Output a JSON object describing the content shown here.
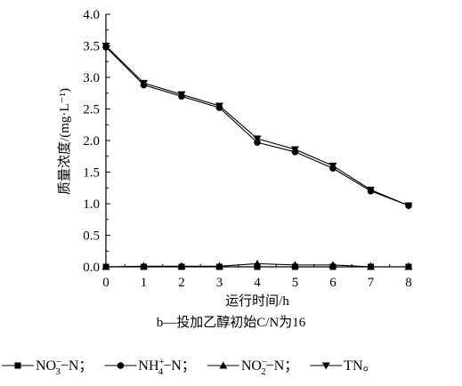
{
  "chart_data": {
    "type": "line",
    "title": "",
    "caption": "b—投加乙醇初始C/N为16",
    "xlabel": "运行时间/h",
    "ylabel": "质量浓度/(mg·L⁻¹)",
    "xlim": [
      0,
      8
    ],
    "ylim": [
      0,
      4.0
    ],
    "x_ticks": [
      "0",
      "1",
      "2",
      "3",
      "4",
      "5",
      "6",
      "7",
      "8"
    ],
    "y_ticks": [
      "0.0",
      "0.5",
      "1.0",
      "1.5",
      "2.0",
      "2.5",
      "3.0",
      "3.5",
      "4.0"
    ],
    "grid": false,
    "legend_position": "bottom",
    "x": [
      0,
      1,
      2,
      3,
      4,
      5,
      6,
      7,
      8
    ],
    "series": [
      {
        "name": "NO3−-N",
        "marker": "square",
        "values": [
          0.0,
          0.0,
          0.0,
          0.0,
          0.0,
          0.0,
          0.0,
          0.0,
          0.0
        ]
      },
      {
        "name": "NH4+-N",
        "marker": "circle",
        "values": [
          3.48,
          2.88,
          2.7,
          2.52,
          1.97,
          1.82,
          1.56,
          1.2,
          0.97
        ]
      },
      {
        "name": "NO2−-N",
        "marker": "triangle-up",
        "values": [
          0.0,
          0.01,
          0.01,
          0.01,
          0.05,
          0.03,
          0.03,
          0.0,
          0.0
        ]
      },
      {
        "name": "TN",
        "marker": "triangle-down",
        "values": [
          3.5,
          2.91,
          2.73,
          2.55,
          2.03,
          1.86,
          1.6,
          1.22,
          0.97
        ]
      }
    ]
  },
  "legend": {
    "dash": "—",
    "sep": "；",
    "end": "。",
    "items": [
      {
        "pre": "NO",
        "sub": "3",
        "sup": "−",
        "post": "−N"
      },
      {
        "pre": "NH",
        "sub": "4",
        "sup": "+",
        "post": "−N"
      },
      {
        "pre": "NO",
        "sub": "2",
        "sup": "−",
        "post": "−N"
      },
      {
        "pre": "TN",
        "sub": "",
        "sup": "",
        "post": ""
      }
    ]
  }
}
